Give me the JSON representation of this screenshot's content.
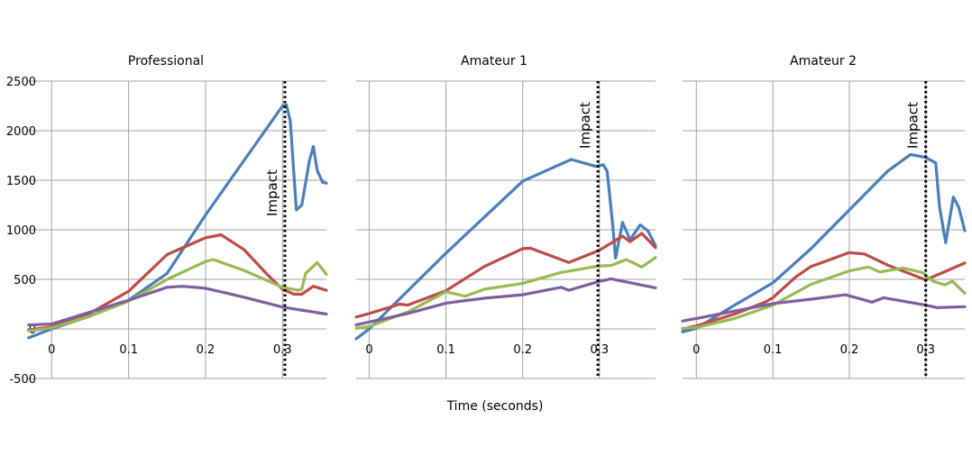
{
  "chart_data": {
    "type": "line",
    "xlabel": "Time (seconds)",
    "ylabel": "",
    "ylim": [
      -500,
      2500
    ],
    "yticks": [
      "2500",
      "2000",
      "1500",
      "1000",
      "500",
      "0",
      "-500"
    ],
    "ytick_values": [
      2500,
      2000,
      1500,
      1000,
      500,
      0,
      -500
    ],
    "xticks": [
      "0",
      "0.1",
      "0.2",
      "0.3"
    ],
    "xtick_values": [
      0,
      0.1,
      0.2,
      0.3
    ],
    "grid": true,
    "impact_label": "Impact",
    "colors": {
      "blue": "#4a7ebb",
      "red": "#be4b48",
      "green": "#98b954",
      "purple": "#7d5fa0"
    },
    "panels": [
      {
        "title": "Professional",
        "xlim": [
          -0.032,
          0.357
        ],
        "impact_x": 0.303,
        "series": [
          {
            "name": "blue",
            "x": [
              -0.03,
              0,
              0.05,
              0.1,
              0.15,
              0.2,
              0.25,
              0.3,
              0.305,
              0.31,
              0.318,
              0.325,
              0.335,
              0.34,
              0.345,
              0.352,
              0.357
            ],
            "y": [
              -90,
              0,
              130,
              290,
              560,
              1150,
              1700,
              2250,
              2260,
              2100,
              1200,
              1250,
              1700,
              1840,
              1600,
              1480,
              1470
            ]
          },
          {
            "name": "red",
            "x": [
              -0.03,
              0,
              0.05,
              0.1,
              0.15,
              0.2,
              0.22,
              0.25,
              0.28,
              0.3,
              0.315,
              0.325,
              0.34,
              0.357
            ],
            "y": [
              -10,
              20,
              160,
              380,
              750,
              920,
              950,
              800,
              550,
              400,
              350,
              350,
              430,
              390
            ]
          },
          {
            "name": "green",
            "x": [
              -0.03,
              0,
              0.05,
              0.1,
              0.15,
              0.2,
              0.21,
              0.25,
              0.3,
              0.32,
              0.325,
              0.33,
              0.345,
              0.357
            ],
            "y": [
              -20,
              10,
              130,
              280,
              500,
              680,
              700,
              590,
              420,
              390,
              400,
              560,
              670,
              550
            ]
          },
          {
            "name": "purple",
            "x": [
              -0.03,
              0,
              0.05,
              0.1,
              0.15,
              0.17,
              0.2,
              0.25,
              0.3,
              0.357
            ],
            "y": [
              40,
              50,
              170,
              290,
              420,
              430,
              410,
              320,
              220,
              150
            ]
          }
        ]
      },
      {
        "title": "Amateur 1",
        "xlim": [
          -0.017,
          0.373
        ],
        "impact_x": 0.298,
        "series": [
          {
            "name": "blue",
            "x": [
              -0.017,
              0,
              0.1,
              0.2,
              0.263,
              0.295,
              0.305,
              0.31,
              0.317,
              0.321,
              0.33,
              0.34,
              0.353,
              0.363,
              0.373
            ],
            "y": [
              -100,
              0,
              765,
              1490,
              1710,
              1640,
              1655,
              1590,
              1070,
              715,
              1075,
              900,
              1050,
              990,
              840
            ]
          },
          {
            "name": "red",
            "x": [
              -0.017,
              0,
              0.04,
              0.05,
              0.1,
              0.15,
              0.2,
              0.21,
              0.26,
              0.3,
              0.33,
              0.34,
              0.355,
              0.373
            ],
            "y": [
              120,
              155,
              250,
              240,
              385,
              630,
              810,
              815,
              670,
              795,
              935,
              880,
              965,
              820
            ]
          },
          {
            "name": "green",
            "x": [
              -0.017,
              0,
              0.05,
              0.1,
              0.125,
              0.15,
              0.2,
              0.25,
              0.3,
              0.315,
              0.335,
              0.355,
              0.373
            ],
            "y": [
              5,
              25,
              170,
              375,
              330,
              400,
              460,
              570,
              635,
              640,
              700,
              625,
              720
            ]
          },
          {
            "name": "purple",
            "x": [
              -0.017,
              0,
              0.05,
              0.1,
              0.15,
              0.2,
              0.25,
              0.26,
              0.3,
              0.315,
              0.373
            ],
            "y": [
              40,
              70,
              155,
              260,
              310,
              345,
              420,
              390,
              480,
              505,
              415
            ]
          }
        ]
      },
      {
        "title": "Amateur 2",
        "xlim": [
          -0.018,
          0.351
        ],
        "impact_x": 0.3,
        "series": [
          {
            "name": "blue",
            "x": [
              -0.018,
              0,
              0.05,
              0.1,
              0.15,
              0.2,
              0.25,
              0.28,
              0.3,
              0.313,
              0.318,
              0.326,
              0.336,
              0.343,
              0.351
            ],
            "y": [
              -30,
              5,
              240,
              465,
              810,
              1200,
              1590,
              1760,
              1730,
              1675,
              1230,
              870,
              1330,
              1230,
              990
            ]
          },
          {
            "name": "red",
            "x": [
              -0.018,
              0,
              0.05,
              0.09,
              0.1,
              0.13,
              0.15,
              0.2,
              0.22,
              0.25,
              0.3,
              0.351
            ],
            "y": [
              0,
              30,
              150,
              270,
              315,
              525,
              630,
              770,
              755,
              645,
              495,
              665
            ]
          },
          {
            "name": "green",
            "x": [
              -0.018,
              0,
              0.05,
              0.1,
              0.15,
              0.2,
              0.225,
              0.24,
              0.27,
              0.295,
              0.31,
              0.325,
              0.335,
              0.351
            ],
            "y": [
              5,
              15,
              105,
              240,
              450,
              585,
              625,
              575,
              615,
              570,
              480,
              445,
              480,
              360
            ]
          },
          {
            "name": "purple",
            "x": [
              -0.018,
              0,
              0.05,
              0.1,
              0.15,
              0.195,
              0.23,
              0.245,
              0.3,
              0.315,
              0.351
            ],
            "y": [
              80,
              105,
              180,
              255,
              300,
              345,
              270,
              315,
              240,
              215,
              225
            ]
          }
        ]
      }
    ]
  }
}
